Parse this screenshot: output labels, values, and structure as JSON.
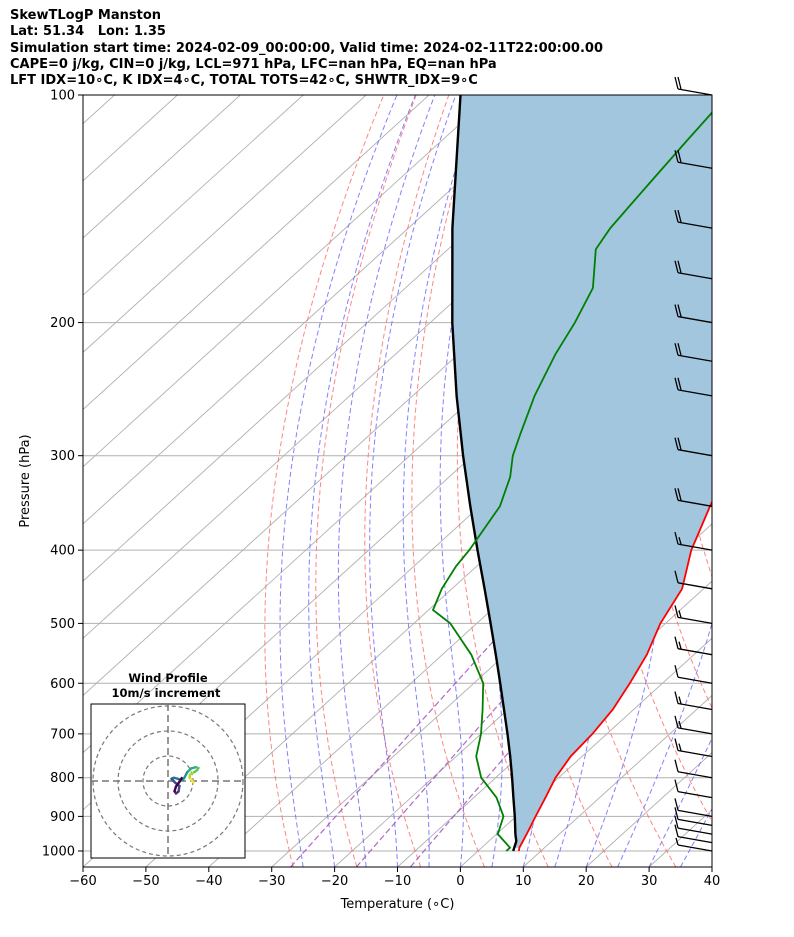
{
  "header": {
    "line1": "SkewTLogP Manston",
    "line2": "Lat: 51.34   Lon: 1.35",
    "line3": "Simulation start time: 2024-02-09_00:00:00, Valid time: 2024-02-11T22:00:00.00",
    "line4": "CAPE=0 j/kg, CIN=0 j/kg, LCL=971 hPa, LFC=nan hPa, EQ=nan hPa",
    "line5": "LFT IDX=10∘C, K IDX=4∘C, TOTAL TOTS=42∘C, SHWTR_IDX=9∘C"
  },
  "chart_data": {
    "type": "line",
    "title": "SkewTLogP Manston",
    "xlabel": "Temperature (∘C)",
    "ylabel": "Pressure (hPa)",
    "xlim": [
      -60,
      40
    ],
    "ylim": [
      1050,
      100
    ],
    "x_ticks": [
      -60,
      -50,
      -40,
      -30,
      -20,
      -10,
      0,
      10,
      20,
      30,
      40
    ],
    "x_tick_labels": [
      "−60",
      "−50",
      "−40",
      "−30",
      "−20",
      "−10",
      "0",
      "10",
      "20",
      "30",
      "40"
    ],
    "y_ticks": [
      1000,
      900,
      800,
      700,
      600,
      500,
      400,
      300,
      200,
      100
    ],
    "y_tick_labels": [
      "1000",
      "900",
      "800",
      "700",
      "600",
      "500",
      "400",
      "300",
      "200",
      "100"
    ],
    "colors": {
      "temperature": "#ff0000",
      "dewpoint": "#008000",
      "parcel": "#000000",
      "fill": "#a3c6df",
      "dry_adiabat": "#ff6666",
      "moist_adiabat": "#6b6bff",
      "mixing_ratio": "#a050c0",
      "isotherm": "#b0b0b0"
    },
    "series": [
      {
        "name": "Temperature",
        "points": [
          [
            1000,
            6.5
          ],
          [
            990,
            6.0
          ],
          [
            950,
            4.8
          ],
          [
            900,
            3.1
          ],
          [
            850,
            1.4
          ],
          [
            800,
            -0.5
          ],
          [
            750,
            -1.8
          ],
          [
            700,
            -2.3
          ],
          [
            650,
            -3.3
          ],
          [
            600,
            -5.2
          ],
          [
            550,
            -7.5
          ],
          [
            500,
            -10.8
          ],
          [
            450,
            -13.4
          ],
          [
            400,
            -18.7
          ],
          [
            350,
            -23.4
          ],
          [
            320,
            -26.3
          ],
          [
            300,
            -28.6
          ],
          [
            280,
            -30.5
          ],
          [
            260,
            -32.6
          ],
          [
            240,
            -35.0
          ],
          [
            230,
            -36.4
          ],
          [
            220,
            -37.7
          ],
          [
            210,
            -38.8
          ],
          [
            200,
            -39.8
          ],
          [
            185,
            -39.4
          ],
          [
            170,
            -40.3
          ],
          [
            160,
            -42.0
          ],
          [
            150,
            -43.8
          ],
          [
            130,
            -47.5
          ],
          [
            115,
            -51.0
          ],
          [
            100,
            -55.0
          ]
        ]
      },
      {
        "name": "Dewpoint",
        "points": [
          [
            1000,
            4.5
          ],
          [
            990,
            4.5
          ],
          [
            950,
            0.2
          ],
          [
            900,
            -2.0
          ],
          [
            850,
            -6.4
          ],
          [
            800,
            -12.3
          ],
          [
            750,
            -16.8
          ],
          [
            700,
            -20.0
          ],
          [
            650,
            -24.0
          ],
          [
            600,
            -28.5
          ],
          [
            550,
            -35.4
          ],
          [
            500,
            -44.2
          ],
          [
            480,
            -49.3
          ],
          [
            450,
            -51.6
          ],
          [
            420,
            -53.3
          ],
          [
            400,
            -54.0
          ],
          [
            350,
            -56.8
          ],
          [
            320,
            -60.3
          ],
          [
            300,
            -63.6
          ],
          [
            280,
            -66.3
          ],
          [
            250,
            -70.6
          ],
          [
            220,
            -74.6
          ],
          [
            200,
            -77.0
          ],
          [
            180,
            -80.2
          ],
          [
            160,
            -86.5
          ],
          [
            150,
            -87.9
          ],
          [
            130,
            -89.6
          ],
          [
            115,
            -91.0
          ],
          [
            100,
            -92.5
          ]
        ]
      },
      {
        "name": "Parcel",
        "points": [
          [
            1000,
            5.6
          ],
          [
            971,
            4.4
          ],
          [
            950,
            3.0
          ],
          [
            900,
            -0.2
          ],
          [
            850,
            -3.7
          ],
          [
            800,
            -7.4
          ],
          [
            750,
            -11.4
          ],
          [
            700,
            -15.8
          ],
          [
            650,
            -20.6
          ],
          [
            600,
            -25.8
          ],
          [
            550,
            -31.5
          ],
          [
            500,
            -37.8
          ],
          [
            450,
            -44.8
          ],
          [
            400,
            -52.7
          ],
          [
            350,
            -61.5
          ],
          [
            300,
            -71.5
          ],
          [
            250,
            -83.0
          ],
          [
            200,
            -96.5
          ],
          [
            150,
            -113.0
          ],
          [
            100,
            -135.0
          ]
        ]
      }
    ],
    "wind_barbs": [
      {
        "pressure": 1000,
        "barbs": "short"
      },
      {
        "pressure": 975,
        "barbs": "1 long"
      },
      {
        "pressure": 950,
        "barbs": "1 long"
      },
      {
        "pressure": 925,
        "barbs": "1 long"
      },
      {
        "pressure": 900,
        "barbs": "1 long"
      },
      {
        "pressure": 850,
        "barbs": "1 long"
      },
      {
        "pressure": 800,
        "barbs": "1 long"
      },
      {
        "pressure": 750,
        "barbs": "1 long, 1 short"
      },
      {
        "pressure": 700,
        "barbs": "1 long, 1 short"
      },
      {
        "pressure": 650,
        "barbs": "1 long, 1 short"
      },
      {
        "pressure": 600,
        "barbs": "1 long"
      },
      {
        "pressure": 550,
        "barbs": "1 long, 1 short"
      },
      {
        "pressure": 500,
        "barbs": "1 long, 1 short"
      },
      {
        "pressure": 450,
        "barbs": "1 long"
      },
      {
        "pressure": 400,
        "barbs": "1 long, 1 short"
      },
      {
        "pressure": 350,
        "barbs": "2 long"
      },
      {
        "pressure": 300,
        "barbs": "2 long"
      },
      {
        "pressure": 250,
        "barbs": "2 long"
      },
      {
        "pressure": 225,
        "barbs": "2 long"
      },
      {
        "pressure": 200,
        "barbs": "2 long"
      },
      {
        "pressure": 175,
        "barbs": "2 long"
      },
      {
        "pressure": 150,
        "barbs": "2 long"
      },
      {
        "pressure": 125,
        "barbs": "2 long"
      },
      {
        "pressure": 100,
        "barbs": "2 long"
      }
    ],
    "hodograph": {
      "title": "Wind Profile",
      "subtitle": "10m/s increment",
      "rings": [
        10,
        20,
        30
      ],
      "points": [
        [
          10.2,
          -0.5
        ],
        [
          9.2,
          0.6
        ],
        [
          8.6,
          1.4
        ],
        [
          8.8,
          2.6
        ],
        [
          10.6,
          3.6
        ],
        [
          11.6,
          4.3
        ],
        [
          12.2,
          5.2
        ],
        [
          11.0,
          5.5
        ],
        [
          9.2,
          5.0
        ],
        [
          7.6,
          3.4
        ],
        [
          6.6,
          1.4
        ],
        [
          5.8,
          0.3
        ],
        [
          4.2,
          0.8
        ],
        [
          2.4,
          1.3
        ],
        [
          1.4,
          0.9
        ],
        [
          2.8,
          -0.6
        ],
        [
          4.6,
          -2.0
        ],
        [
          4.2,
          -4.2
        ],
        [
          3.2,
          -5.0
        ],
        [
          2.6,
          -4.1
        ],
        [
          3.2,
          -2.2
        ],
        [
          4.6,
          -0.3
        ],
        [
          5.5,
          1.2
        ]
      ]
    }
  }
}
